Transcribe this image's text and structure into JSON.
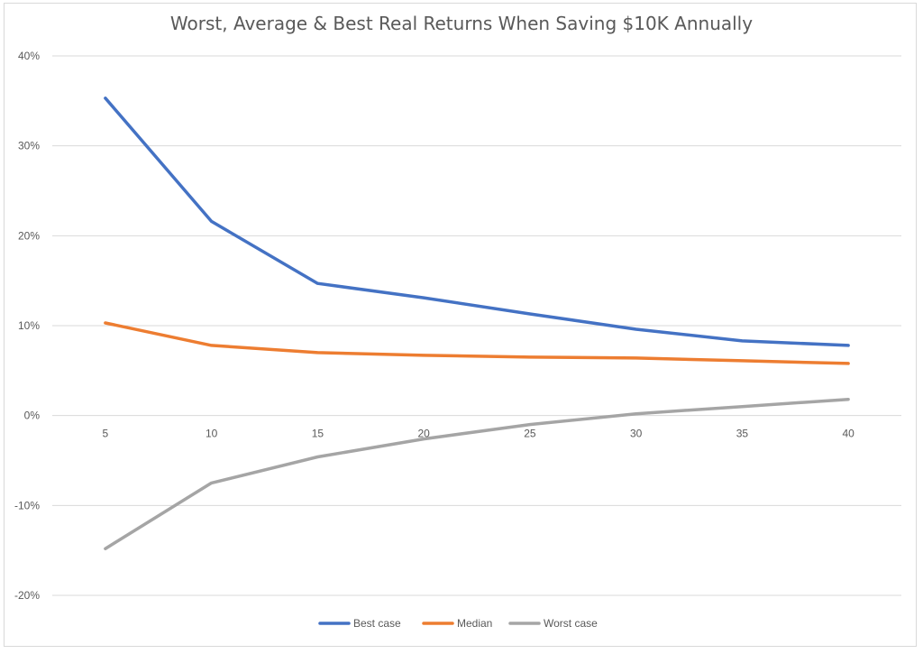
{
  "chart_data": {
    "type": "line",
    "title": "Worst, Average & Best Real Returns When Saving $10K Annually",
    "xlabel": "",
    "ylabel": "",
    "categories": [
      "5",
      "10",
      "15",
      "20",
      "25",
      "30",
      "35",
      "40"
    ],
    "ylim": [
      -0.2,
      0.4
    ],
    "yticks": [
      0.4,
      0.3,
      0.2,
      0.1,
      0.0,
      -0.1,
      -0.2
    ],
    "ytick_labels": [
      "40%",
      "30%",
      "20%",
      "10%",
      "0%",
      "-10%",
      "-20%"
    ],
    "grid": true,
    "legend_position": "bottom",
    "series": [
      {
        "name": "Best case",
        "color": "#4472c4",
        "values": [
          0.353,
          0.216,
          0.147,
          0.131,
          0.113,
          0.096,
          0.083,
          0.078
        ]
      },
      {
        "name": "Median",
        "color": "#ed7d31",
        "values": [
          0.103,
          0.078,
          0.07,
          0.067,
          0.065,
          0.064,
          0.061,
          0.058
        ]
      },
      {
        "name": "Worst case",
        "color": "#a5a5a5",
        "values": [
          -0.148,
          -0.075,
          -0.046,
          -0.026,
          -0.01,
          0.002,
          0.01,
          0.018
        ]
      }
    ]
  }
}
